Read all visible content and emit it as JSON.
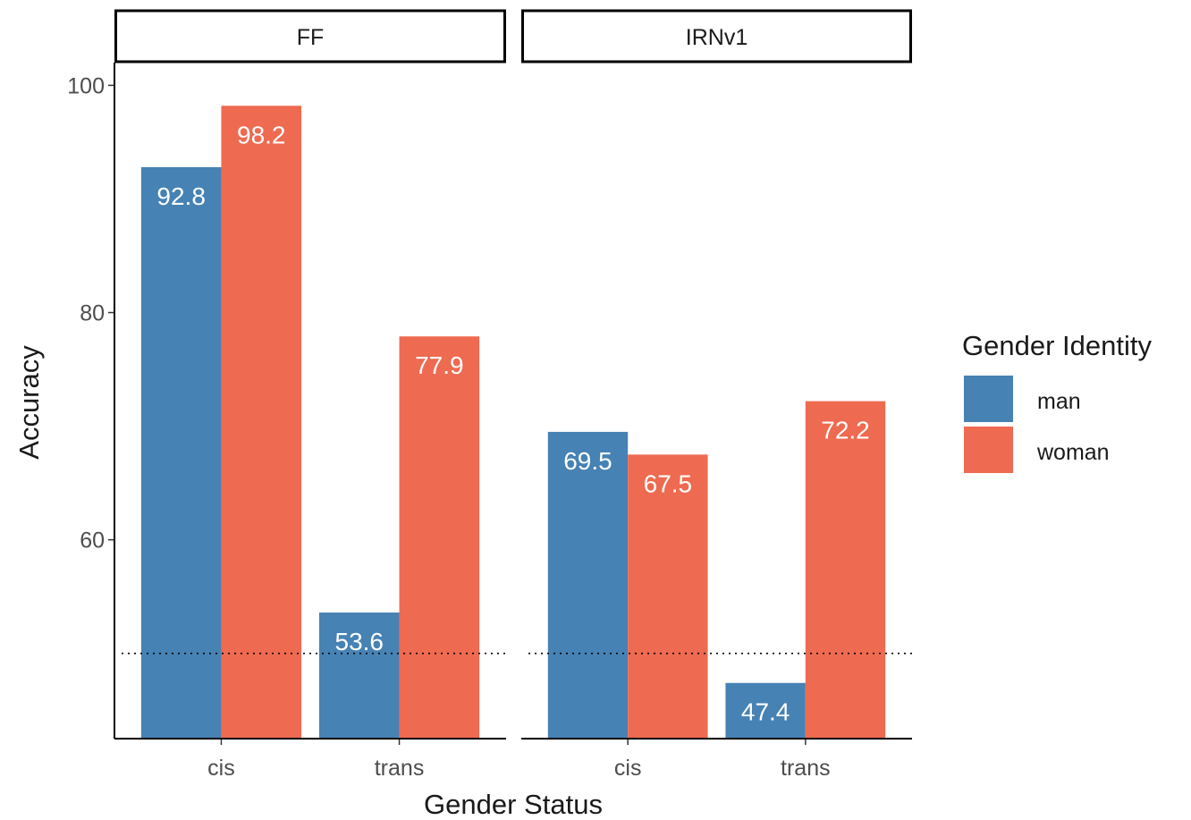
{
  "chart_data": {
    "type": "bar",
    "facet_variable": "model",
    "facets": [
      {
        "label": "FF",
        "categories": [
          "cis",
          "trans"
        ],
        "series": [
          {
            "name": "man",
            "values": [
              92.8,
              53.6
            ]
          },
          {
            "name": "woman",
            "values": [
              98.2,
              77.9
            ]
          }
        ]
      },
      {
        "label": "IRNv1",
        "categories": [
          "cis",
          "trans"
        ],
        "series": [
          {
            "name": "man",
            "values": [
              69.5,
              47.4
            ]
          },
          {
            "name": "woman",
            "values": [
              67.5,
              72.2
            ]
          }
        ]
      }
    ],
    "value_labels": true,
    "xlabel": "Gender Status",
    "ylabel": "Accuracy",
    "ylim": [
      42.5,
      102
    ],
    "yticks": [
      60,
      80,
      100
    ],
    "reference_line": {
      "value": 50,
      "style": "dotted"
    },
    "grid": false,
    "legend": {
      "title": "Gender Identity",
      "position": "right",
      "entries": [
        {
          "name": "man",
          "color": "#4682b4"
        },
        {
          "name": "woman",
          "color": "#ee6a50"
        }
      ]
    },
    "colors": {
      "man": "#4682b4",
      "woman": "#ee6a50"
    }
  }
}
